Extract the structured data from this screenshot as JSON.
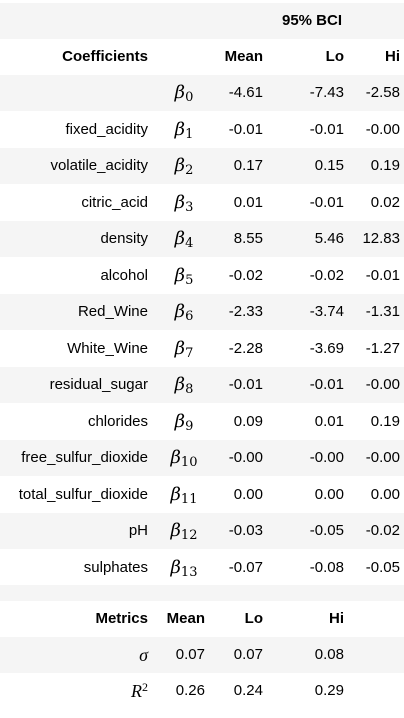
{
  "coef_table": {
    "group_header": "95% BCI",
    "headers": {
      "name": "Coefficients",
      "mean": "Mean",
      "lo": "Lo",
      "hi": "Hi"
    },
    "rows": [
      {
        "name": "",
        "symbol": "β",
        "sub": "0",
        "mean": "-4.61",
        "lo": "-7.43",
        "hi": "-2.58"
      },
      {
        "name": "fixed_acidity",
        "symbol": "β",
        "sub": "1",
        "mean": "-0.01",
        "lo": "-0.01",
        "hi": "-0.00"
      },
      {
        "name": "volatile_acidity",
        "symbol": "β",
        "sub": "2",
        "mean": "0.17",
        "lo": "0.15",
        "hi": "0.19"
      },
      {
        "name": "citric_acid",
        "symbol": "β",
        "sub": "3",
        "mean": "0.01",
        "lo": "-0.01",
        "hi": "0.02"
      },
      {
        "name": "density",
        "symbol": "β",
        "sub": "4",
        "mean": "8.55",
        "lo": "5.46",
        "hi": "12.83"
      },
      {
        "name": "alcohol",
        "symbol": "β",
        "sub": "5",
        "mean": "-0.02",
        "lo": "-0.02",
        "hi": "-0.01"
      },
      {
        "name": "Red_Wine",
        "symbol": "β",
        "sub": "6",
        "mean": "-2.33",
        "lo": "-3.74",
        "hi": "-1.31"
      },
      {
        "name": "White_Wine",
        "symbol": "β",
        "sub": "7",
        "mean": "-2.28",
        "lo": "-3.69",
        "hi": "-1.27"
      },
      {
        "name": "residual_sugar",
        "symbol": "β",
        "sub": "8",
        "mean": "-0.01",
        "lo": "-0.01",
        "hi": "-0.00"
      },
      {
        "name": "chlorides",
        "symbol": "β",
        "sub": "9",
        "mean": "0.09",
        "lo": "0.01",
        "hi": "0.19"
      },
      {
        "name": "free_sulfur_dioxide",
        "symbol": "β",
        "sub": "10",
        "mean": "-0.00",
        "lo": "-0.00",
        "hi": "-0.00"
      },
      {
        "name": "total_sulfur_dioxide",
        "symbol": "β",
        "sub": "11",
        "mean": "0.00",
        "lo": "0.00",
        "hi": "0.00"
      },
      {
        "name": "pH",
        "symbol": "β",
        "sub": "12",
        "mean": "-0.03",
        "lo": "-0.05",
        "hi": "-0.02"
      },
      {
        "name": "sulphates",
        "symbol": "β",
        "sub": "13",
        "mean": "-0.07",
        "lo": "-0.08",
        "hi": "-0.05"
      }
    ]
  },
  "metrics_table": {
    "headers": {
      "name": "Metrics",
      "mean": "Mean",
      "lo": "Lo",
      "hi": "Hi"
    },
    "rows": [
      {
        "symbol": "σ",
        "sup": "",
        "mean": "0.07",
        "lo": "0.07",
        "hi": "0.08"
      },
      {
        "symbol": "R",
        "sup": "2",
        "mean": "0.26",
        "lo": "0.24",
        "hi": "0.29"
      }
    ]
  }
}
